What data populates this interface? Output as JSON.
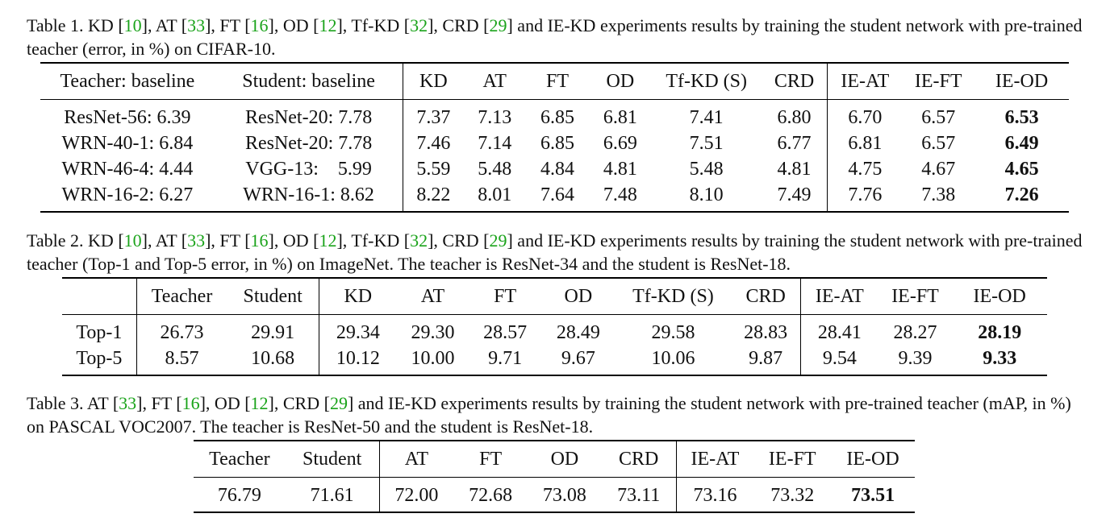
{
  "table1": {
    "caption": {
      "label": "Table 1.",
      "parts": [
        {
          "t": "KD [",
          "c": false
        },
        {
          "t": "10",
          "c": true
        },
        {
          "t": "], AT [",
          "c": false
        },
        {
          "t": "33",
          "c": true
        },
        {
          "t": "], FT [",
          "c": false
        },
        {
          "t": "16",
          "c": true
        },
        {
          "t": "], OD [",
          "c": false
        },
        {
          "t": "12",
          "c": true
        },
        {
          "t": "], Tf-KD [",
          "c": false
        },
        {
          "t": "32",
          "c": true
        },
        {
          "t": "], CRD [",
          "c": false
        },
        {
          "t": "29",
          "c": true
        },
        {
          "t": "] and IE-KD experiments results by training the student network with pre-trained teacher (error, in %) on CIFAR-10.",
          "c": false
        }
      ]
    },
    "headers": [
      "Teacher: baseline",
      "Student: baseline",
      "KD",
      "AT",
      "FT",
      "OD",
      "Tf-KD (S)",
      "CRD",
      "IE-AT",
      "IE-FT",
      "IE-OD"
    ],
    "rows": [
      [
        "ResNet-56: 6.39",
        "ResNet-20: 7.78",
        "7.37",
        "7.13",
        "6.85",
        "6.81",
        "7.41",
        "6.80",
        "6.70",
        "6.57",
        "6.53"
      ],
      [
        "WRN-40-1: 6.84",
        "ResNet-20: 7.78",
        "7.46",
        "7.14",
        "6.85",
        "6.69",
        "7.51",
        "6.77",
        "6.81",
        "6.57",
        "6.49"
      ],
      [
        "WRN-46-4: 4.44",
        "VGG-13:    5.99",
        "5.59",
        "5.48",
        "4.84",
        "4.81",
        "5.48",
        "4.81",
        "4.75",
        "4.67",
        "4.65"
      ],
      [
        "WRN-16-2: 6.27",
        "WRN-16-1: 8.62",
        "8.22",
        "8.01",
        "7.64",
        "7.48",
        "8.10",
        "7.49",
        "7.76",
        "7.38",
        "7.26"
      ]
    ]
  },
  "table2": {
    "caption": {
      "label": "Table 2.",
      "parts": [
        {
          "t": "KD [",
          "c": false
        },
        {
          "t": "10",
          "c": true
        },
        {
          "t": "], AT [",
          "c": false
        },
        {
          "t": "33",
          "c": true
        },
        {
          "t": "], FT [",
          "c": false
        },
        {
          "t": "16",
          "c": true
        },
        {
          "t": "], OD [",
          "c": false
        },
        {
          "t": "12",
          "c": true
        },
        {
          "t": "], Tf-KD [",
          "c": false
        },
        {
          "t": "32",
          "c": true
        },
        {
          "t": "], CRD [",
          "c": false
        },
        {
          "t": "29",
          "c": true
        },
        {
          "t": "] and IE-KD experiments results by training the student network with pre-trained teacher (Top-1 and Top-5 error, in %) on ImageNet. The teacher is ResNet-34 and the student is ResNet-18.",
          "c": false
        }
      ]
    },
    "headers": [
      "",
      "Teacher",
      "Student",
      "KD",
      "AT",
      "FT",
      "OD",
      "Tf-KD (S)",
      "CRD",
      "IE-AT",
      "IE-FT",
      "IE-OD"
    ],
    "rows": [
      [
        "Top-1",
        "26.73",
        "29.91",
        "29.34",
        "29.30",
        "28.57",
        "28.49",
        "29.58",
        "28.83",
        "28.41",
        "28.27",
        "28.19"
      ],
      [
        "Top-5",
        "8.57",
        "10.68",
        "10.12",
        "10.00",
        "9.71",
        "9.67",
        "10.06",
        "9.87",
        "9.54",
        "9.39",
        "9.33"
      ]
    ]
  },
  "table3": {
    "caption": {
      "label": "Table 3.",
      "parts": [
        {
          "t": "AT [",
          "c": false
        },
        {
          "t": "33",
          "c": true
        },
        {
          "t": "], FT [",
          "c": false
        },
        {
          "t": "16",
          "c": true
        },
        {
          "t": "], OD [",
          "c": false
        },
        {
          "t": "12",
          "c": true
        },
        {
          "t": "], CRD [",
          "c": false
        },
        {
          "t": "29",
          "c": true
        },
        {
          "t": "] and IE-KD experiments results by training the student network with pre-trained teacher (mAP, in %) on PASCAL VOC2007. The teacher is ResNet-50 and the student is ResNet-18.",
          "c": false
        }
      ]
    },
    "headers": [
      "Teacher",
      "Student",
      "AT",
      "FT",
      "OD",
      "CRD",
      "IE-AT",
      "IE-FT",
      "IE-OD"
    ],
    "rows": [
      [
        "76.79",
        "71.61",
        "72.00",
        "72.68",
        "73.08",
        "73.11",
        "73.16",
        "73.32",
        "73.51"
      ]
    ]
  }
}
